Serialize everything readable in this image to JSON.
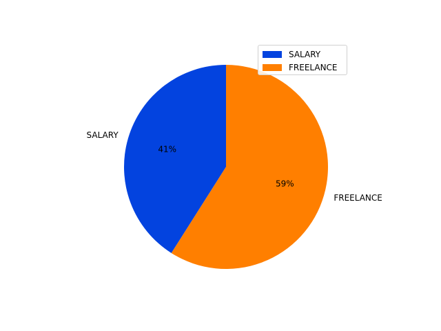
{
  "chart_data": {
    "type": "pie",
    "categories": [
      "SALARY",
      "FREELANCE"
    ],
    "values": [
      41,
      59
    ],
    "value_labels": [
      "41%",
      "59%"
    ],
    "colors": [
      "#0343df",
      "#ff7f00"
    ],
    "start_angle_deg": 90,
    "direction": "counterclockwise",
    "legend": {
      "placement": "upper-right",
      "entries": [
        "SALARY",
        "FREELANCE"
      ]
    },
    "title": ""
  }
}
